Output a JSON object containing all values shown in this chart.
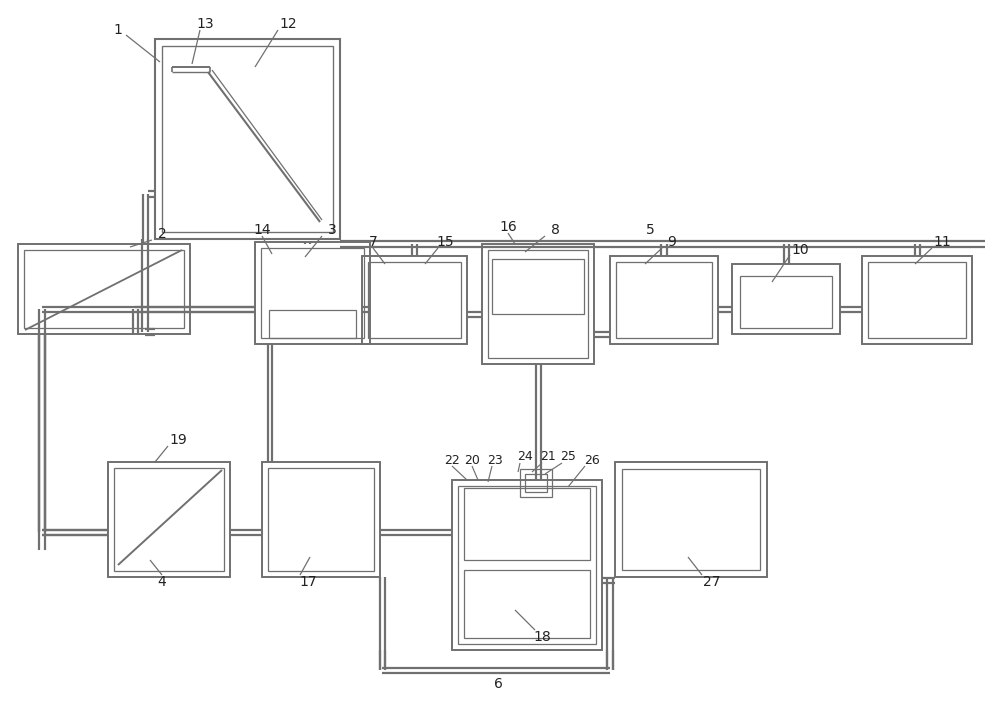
{
  "bg": "#ffffff",
  "lc": "#707070",
  "fig_w": 10.0,
  "fig_h": 7.02,
  "xlim": [
    0,
    10
  ],
  "ylim": [
    0,
    7.02
  ]
}
